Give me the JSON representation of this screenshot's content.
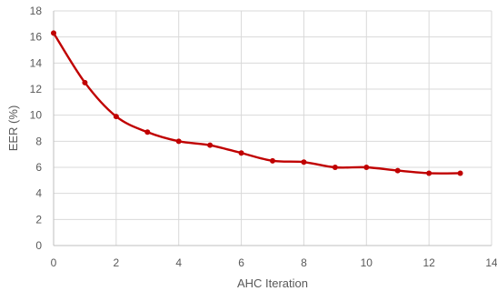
{
  "chart_data": {
    "type": "line",
    "title": "",
    "xlabel": "AHC Iteration",
    "ylabel": "EER (%)",
    "xlim": [
      0,
      14
    ],
    "ylim": [
      0,
      18
    ],
    "x_ticks": [
      0,
      2,
      4,
      6,
      8,
      10,
      12,
      14
    ],
    "y_ticks": [
      0,
      2,
      4,
      6,
      8,
      10,
      12,
      14,
      16,
      18
    ],
    "grid": true,
    "legend": "none",
    "smooth": true,
    "series": [
      {
        "color": "#C00000",
        "x": [
          0,
          1,
          2,
          3,
          4,
          5,
          6,
          7,
          8,
          9,
          10,
          11,
          12,
          13
        ],
        "y": [
          16.3,
          12.5,
          9.9,
          8.7,
          8.0,
          7.7,
          7.1,
          6.5,
          6.4,
          6.0,
          6.0,
          5.75,
          5.55,
          5.55
        ]
      }
    ]
  }
}
